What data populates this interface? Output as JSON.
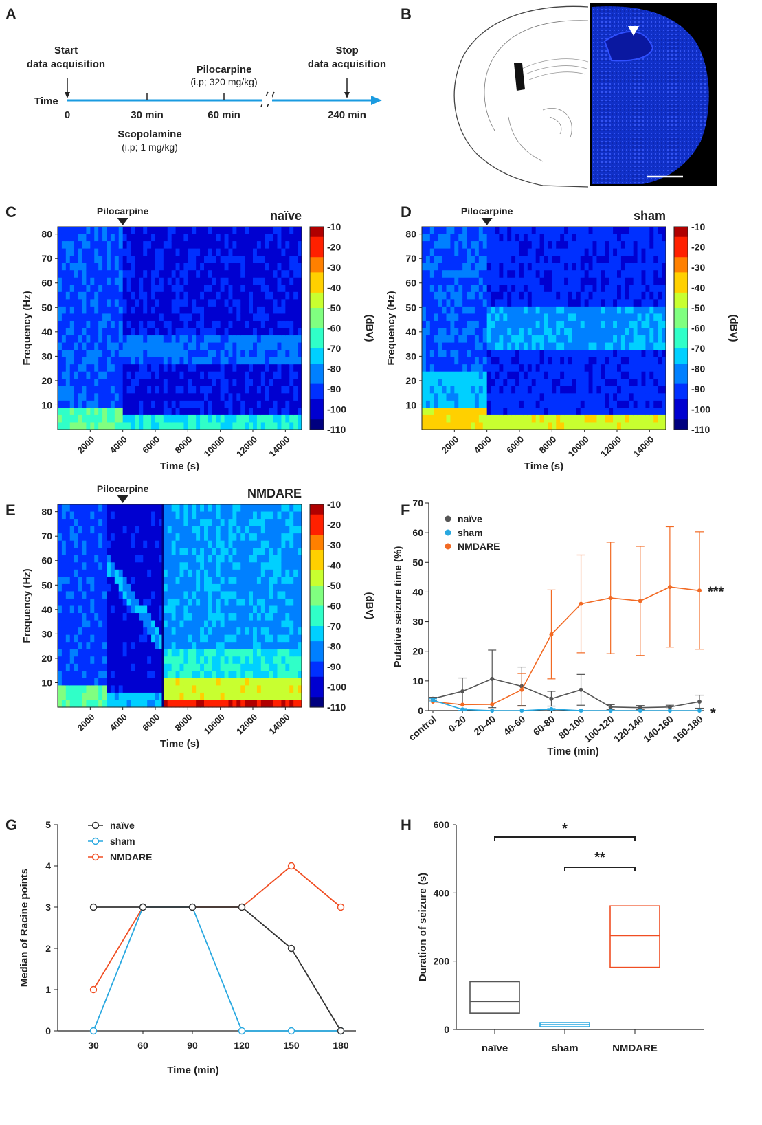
{
  "panels": {
    "A": "A",
    "B": "B",
    "C": "C",
    "D": "D",
    "E": "E",
    "F": "F",
    "G": "G",
    "H": "H"
  },
  "timeline": {
    "time_label": "Time",
    "start_line1": "Start",
    "start_line2": "data acquisition",
    "stop_line1": "Stop",
    "stop_line2": "data acquisition",
    "pilo_line1": "Pilocarpine",
    "pilo_line2": "(i.p; 320 mg/kg)",
    "scop_line1": "Scopolamine",
    "scop_line2": "(i.p; 1 mg/kg)",
    "ticks": [
      "0",
      "30 min",
      "60 min",
      "240 min"
    ],
    "color": "#1a9be0"
  },
  "spectrograms": [
    {
      "id": "C",
      "group": "naïve",
      "marker": "Pilocarpine",
      "ylabel": "Frequency (Hz)",
      "xlabel": "Time (s)",
      "unit": "(dBV)",
      "yticks": [
        "80",
        "70",
        "60",
        "50",
        "40",
        "30",
        "20",
        "10"
      ],
      "xticks": [
        "2000",
        "4000",
        "6000",
        "8000",
        "10000",
        "12000",
        "14000"
      ],
      "cticks": [
        "-10",
        "-20",
        "-30",
        "-40",
        "-50",
        "-60",
        "-70",
        "-80",
        "-90",
        "-100",
        "-110"
      ]
    },
    {
      "id": "D",
      "group": "sham",
      "marker": "Pilocarpine",
      "ylabel": "Frequency (Hz)",
      "xlabel": "Time (s)",
      "unit": "(dBV)",
      "yticks": [
        "80",
        "70",
        "60",
        "50",
        "40",
        "30",
        "20",
        "10"
      ],
      "xticks": [
        "2000",
        "4000",
        "6000",
        "8000",
        "10000",
        "12000",
        "14000"
      ],
      "cticks": [
        "-10",
        "-20",
        "-30",
        "-40",
        "-50",
        "-60",
        "-70",
        "-80",
        "-90",
        "-100",
        "-110"
      ]
    },
    {
      "id": "E",
      "group": "NMDARE",
      "marker": "Pilocarpine",
      "ylabel": "Frequency (Hz)",
      "xlabel": "Time (s)",
      "unit": "(dBV)",
      "yticks": [
        "80",
        "70",
        "60",
        "50",
        "40",
        "30",
        "20",
        "10"
      ],
      "xticks": [
        "2000",
        "4000",
        "6000",
        "8000",
        "10000",
        "12000",
        "14000"
      ],
      "cticks": [
        "-10",
        "-20",
        "-30",
        "-40",
        "-50",
        "-60",
        "-70",
        "-80",
        "-90",
        "-100",
        "-110"
      ]
    }
  ],
  "chart_data": [
    {
      "id": "F",
      "type": "line",
      "ylabel": "Putative seizure time (%)",
      "xlabel": "Time (min)",
      "ylim": [
        0,
        70
      ],
      "yticks": [
        "0",
        "10",
        "20",
        "30",
        "40",
        "50",
        "60",
        "70"
      ],
      "categories": [
        "control",
        "0-20",
        "20-40",
        "40-60",
        "60-80",
        "80-100",
        "100-120",
        "120-140",
        "140-160",
        "160-180"
      ],
      "legend": "top-left",
      "series": [
        {
          "name": "naïve",
          "color": "#555555",
          "values": [
            4,
            6.5,
            10.7,
            8.2,
            4,
            7,
            1.2,
            1,
            1.2,
            3
          ],
          "errors": [
            0.5,
            4.5,
            9.7,
            6.5,
            2.5,
            5.2,
            0.8,
            0.7,
            0.6,
            2.2
          ]
        },
        {
          "name": "sham",
          "color": "#29a8e0",
          "values": [
            3.5,
            0.4,
            0,
            0,
            0.5,
            0,
            0,
            0,
            0,
            0
          ],
          "errors": [
            0.5,
            0.3,
            0,
            0,
            0.2,
            0,
            0,
            0,
            0,
            0
          ]
        },
        {
          "name": "NMDARE",
          "color": "#f26a24",
          "values": [
            3,
            2,
            2.1,
            7,
            25.7,
            36,
            38,
            37,
            41.7,
            40.5
          ],
          "errors": [
            0,
            0,
            0,
            5.5,
            15,
            16.5,
            18.8,
            18.4,
            20.3,
            19.8
          ]
        }
      ],
      "significance": [
        {
          "series": "NMDARE",
          "label": "***"
        },
        {
          "series": "sham",
          "label": "*"
        }
      ]
    },
    {
      "id": "G",
      "type": "line",
      "ylabel": "Median of Racine points",
      "xlabel": "Time (min)",
      "ylim": [
        0,
        5
      ],
      "yticks": [
        "0",
        "1",
        "2",
        "3",
        "4",
        "5"
      ],
      "x": [
        30,
        60,
        90,
        120,
        150,
        180
      ],
      "xticks": [
        "30",
        "60",
        "90",
        "120",
        "150",
        "180"
      ],
      "legend": "top-left",
      "series": [
        {
          "name": "naïve",
          "color": "#333333",
          "values": [
            3,
            3,
            3,
            3,
            2,
            0
          ]
        },
        {
          "name": "sham",
          "color": "#29a8e0",
          "values": [
            0,
            3,
            3,
            0,
            0,
            0
          ]
        },
        {
          "name": "NMDARE",
          "color": "#f04e23",
          "values": [
            1,
            3,
            3,
            3,
            4,
            3
          ]
        }
      ]
    },
    {
      "id": "H",
      "type": "box",
      "ylabel": "Duration of seizure (s)",
      "ylim": [
        0,
        600
      ],
      "yticks": [
        "0",
        "200",
        "400",
        "600"
      ],
      "categories": [
        "naïve",
        "sham",
        "NMDARE"
      ],
      "boxes": [
        {
          "name": "naïve",
          "color": "#555555",
          "low": 48,
          "median": 82,
          "high": 140
        },
        {
          "name": "sham",
          "color": "#29a8e0",
          "low": 8,
          "median": 14,
          "high": 20
        },
        {
          "name": "NMDARE",
          "color": "#f04e23",
          "low": 182,
          "median": 275,
          "high": 362
        }
      ],
      "significance": [
        {
          "from": "naïve",
          "to": "NMDARE",
          "label": "*"
        },
        {
          "from": "sham",
          "to": "NMDARE",
          "label": "**"
        }
      ]
    }
  ]
}
